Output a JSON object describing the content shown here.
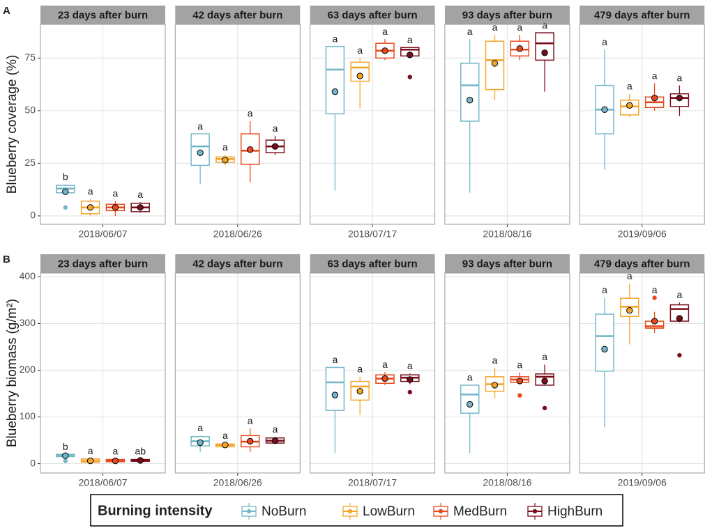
{
  "legend": {
    "title": "Burning intensity",
    "series": [
      {
        "name": "NoBurn",
        "color": "#74b7c9"
      },
      {
        "name": "LowBurn",
        "color": "#f3a62a"
      },
      {
        "name": "MedBurn",
        "color": "#e84a1e"
      },
      {
        "name": "HighBurn",
        "color": "#7a0d1c"
      }
    ]
  },
  "chart_data": [
    {
      "type": "box",
      "panel_label": "A",
      "ylabel": "Blueberry coverage (%)",
      "ylim": [
        -4,
        91
      ],
      "yticks": [
        0,
        25,
        50,
        75
      ],
      "facets": [
        {
          "title": "23 days after burn",
          "category": "2018/06/07",
          "boxes": [
            {
              "min": 10,
              "q1": 11,
              "median": 13,
              "q3": 14.5,
              "max": 15,
              "mean": 11.5,
              "outliers": [
                4
              ],
              "label": "b"
            },
            {
              "min": 0,
              "q1": 1,
              "median": 4,
              "q3": 7,
              "max": 8,
              "mean": 4,
              "outliers": [],
              "label": "a"
            },
            {
              "min": 0,
              "q1": 2.5,
              "median": 4,
              "q3": 5.5,
              "max": 7,
              "mean": 4,
              "outliers": [],
              "label": "a"
            },
            {
              "min": 1.5,
              "q1": 2,
              "median": 4,
              "q3": 6,
              "max": 6.5,
              "mean": 4,
              "outliers": [],
              "label": "a"
            }
          ]
        },
        {
          "title": "42 days after burn",
          "category": "2018/06/26",
          "boxes": [
            {
              "min": 15,
              "q1": 24,
              "median": 33,
              "q3": 39,
              "max": 39,
              "mean": 30,
              "outliers": [],
              "label": "a"
            },
            {
              "min": 24,
              "q1": 25.5,
              "median": 27,
              "q3": 28,
              "max": 29,
              "mean": 26.5,
              "outliers": [],
              "label": "a"
            },
            {
              "min": 16,
              "q1": 24.5,
              "median": 31,
              "q3": 39,
              "max": 45,
              "mean": 31.5,
              "outliers": [],
              "label": "a"
            },
            {
              "min": 29,
              "q1": 30,
              "median": 33,
              "q3": 36,
              "max": 38,
              "mean": 33,
              "outliers": [],
              "label": "a"
            }
          ]
        },
        {
          "title": "63 days after burn",
          "category": "2018/07/17",
          "boxes": [
            {
              "min": 12,
              "q1": 48.5,
              "median": 69.5,
              "q3": 80.5,
              "max": 80.5,
              "mean": 59,
              "outliers": [],
              "label": "a"
            },
            {
              "min": 51,
              "q1": 64,
              "median": 70.5,
              "q3": 73,
              "max": 75,
              "mean": 66.5,
              "outliers": [],
              "label": "a"
            },
            {
              "min": 74,
              "q1": 75,
              "median": 78.5,
              "q3": 82,
              "max": 84,
              "mean": 78.5,
              "outliers": [],
              "label": "a"
            },
            {
              "min": 76,
              "q1": 76,
              "median": 79,
              "q3": 80,
              "max": 80,
              "mean": 76.5,
              "outliers": [
                66
              ],
              "label": "a"
            }
          ]
        },
        {
          "title": "93 days after burn",
          "category": "2018/08/16",
          "boxes": [
            {
              "min": 11,
              "q1": 45,
              "median": 62,
              "q3": 72.5,
              "max": 84,
              "mean": 55,
              "outliers": [],
              "label": "a"
            },
            {
              "min": 55,
              "q1": 60,
              "median": 74,
              "q3": 83,
              "max": 86,
              "mean": 72.5,
              "outliers": [],
              "label": "a"
            },
            {
              "min": 74,
              "q1": 76,
              "median": 79,
              "q3": 83,
              "max": 86,
              "mean": 79.5,
              "outliers": [],
              "label": "a"
            },
            {
              "min": 59,
              "q1": 74,
              "median": 82,
              "q3": 87,
              "max": 87,
              "mean": 77.5,
              "outliers": [],
              "label": "a"
            }
          ]
        },
        {
          "title": "479 days after burn",
          "category": "2019/09/06",
          "boxes": [
            {
              "min": 22,
              "q1": 39,
              "median": 50.5,
              "q3": 62,
              "max": 79,
              "mean": 50.5,
              "outliers": [],
              "label": "a"
            },
            {
              "min": 47,
              "q1": 48,
              "median": 52,
              "q3": 55,
              "max": 58,
              "mean": 52.5,
              "outliers": [],
              "label": "a"
            },
            {
              "min": 50,
              "q1": 51.5,
              "median": 54,
              "q3": 56.5,
              "max": 63,
              "mean": 56,
              "outliers": [],
              "label": "a"
            },
            {
              "min": 47.5,
              "q1": 52,
              "median": 56,
              "q3": 58,
              "max": 62,
              "mean": 56,
              "outliers": [],
              "label": "a"
            }
          ]
        }
      ]
    },
    {
      "type": "box",
      "panel_label": "B",
      "ylabel": "Blueberry biomass (g/m²)",
      "ylim": [
        -20,
        408
      ],
      "yticks": [
        0,
        100,
        200,
        300,
        400
      ],
      "facets": [
        {
          "title": "23 days after burn",
          "category": "2018/06/07",
          "boxes": [
            {
              "min": 15,
              "q1": 15,
              "median": 18,
              "q3": 20,
              "max": 20,
              "mean": 17,
              "outliers": [
                6
              ],
              "label": "b"
            },
            {
              "min": 1,
              "q1": 3,
              "median": 6,
              "q3": 10,
              "max": 11,
              "mean": 6,
              "outliers": [],
              "label": "a"
            },
            {
              "min": 2,
              "q1": 4,
              "median": 6,
              "q3": 9,
              "max": 10,
              "mean": 6,
              "outliers": [],
              "label": "a"
            },
            {
              "min": 4,
              "q1": 5,
              "median": 7,
              "q3": 9,
              "max": 10,
              "mean": 7,
              "outliers": [],
              "label": "ab"
            }
          ]
        },
        {
          "title": "42 days after burn",
          "category": "2018/06/26",
          "boxes": [
            {
              "min": 25,
              "q1": 38,
              "median": 48,
              "q3": 58,
              "max": 60,
              "mean": 45,
              "outliers": [],
              "label": "a"
            },
            {
              "min": 34,
              "q1": 36,
              "median": 40,
              "q3": 42,
              "max": 44,
              "mean": 40,
              "outliers": [],
              "label": "a"
            },
            {
              "min": 25,
              "q1": 36,
              "median": 47,
              "q3": 60,
              "max": 75,
              "mean": 48,
              "outliers": [],
              "label": "a"
            },
            {
              "min": 43,
              "q1": 44,
              "median": 49,
              "q3": 55,
              "max": 57,
              "mean": 49,
              "outliers": [],
              "label": "a"
            }
          ]
        },
        {
          "title": "63 days after burn",
          "category": "2018/07/17",
          "boxes": [
            {
              "min": 23,
              "q1": 114,
              "median": 174,
              "q3": 206,
              "max": 206,
              "mean": 147,
              "outliers": [],
              "label": "a"
            },
            {
              "min": 104,
              "q1": 136,
              "median": 165,
              "q3": 176,
              "max": 186,
              "mean": 155,
              "outliers": [],
              "label": "a"
            },
            {
              "min": 168,
              "q1": 172,
              "median": 182,
              "q3": 190,
              "max": 196,
              "mean": 182,
              "outliers": [],
              "label": "a"
            },
            {
              "min": 170,
              "q1": 176,
              "median": 184,
              "q3": 190,
              "max": 193,
              "mean": 180,
              "outliers": [
                153
              ],
              "label": "a"
            }
          ]
        },
        {
          "title": "93 days after burn",
          "category": "2018/08/16",
          "boxes": [
            {
              "min": 23,
              "q1": 108,
              "median": 148,
              "q3": 168,
              "max": 168,
              "mean": 127,
              "outliers": [],
              "label": "a"
            },
            {
              "min": 140,
              "q1": 155,
              "median": 170,
              "q3": 186,
              "max": 205,
              "mean": 168,
              "outliers": [],
              "label": "a"
            },
            {
              "min": 170,
              "q1": 174,
              "median": 180,
              "q3": 186,
              "max": 195,
              "mean": 177,
              "outliers": [
                146
              ],
              "label": "a"
            },
            {
              "min": 168,
              "q1": 168,
              "median": 186,
              "q3": 192,
              "max": 212,
              "mean": 177,
              "outliers": [
                119
              ],
              "label": "a"
            }
          ]
        },
        {
          "title": "479 days after burn",
          "category": "2019/09/06",
          "boxes": [
            {
              "min": 78,
              "q1": 198,
              "median": 273,
              "q3": 320,
              "max": 355,
              "mean": 245,
              "outliers": [],
              "label": "a"
            },
            {
              "min": 255,
              "q1": 315,
              "median": 336,
              "q3": 354,
              "max": 385,
              "mean": 328,
              "outliers": [],
              "label": "a"
            },
            {
              "min": 280,
              "q1": 290,
              "median": 294,
              "q3": 305,
              "max": 325,
              "mean": 305,
              "outliers": [
                355
              ],
              "label": "a"
            },
            {
              "min": 303,
              "q1": 305,
              "median": 331,
              "q3": 340,
              "max": 345,
              "mean": 311,
              "outliers": [
                232
              ],
              "label": "a"
            }
          ]
        }
      ]
    }
  ]
}
